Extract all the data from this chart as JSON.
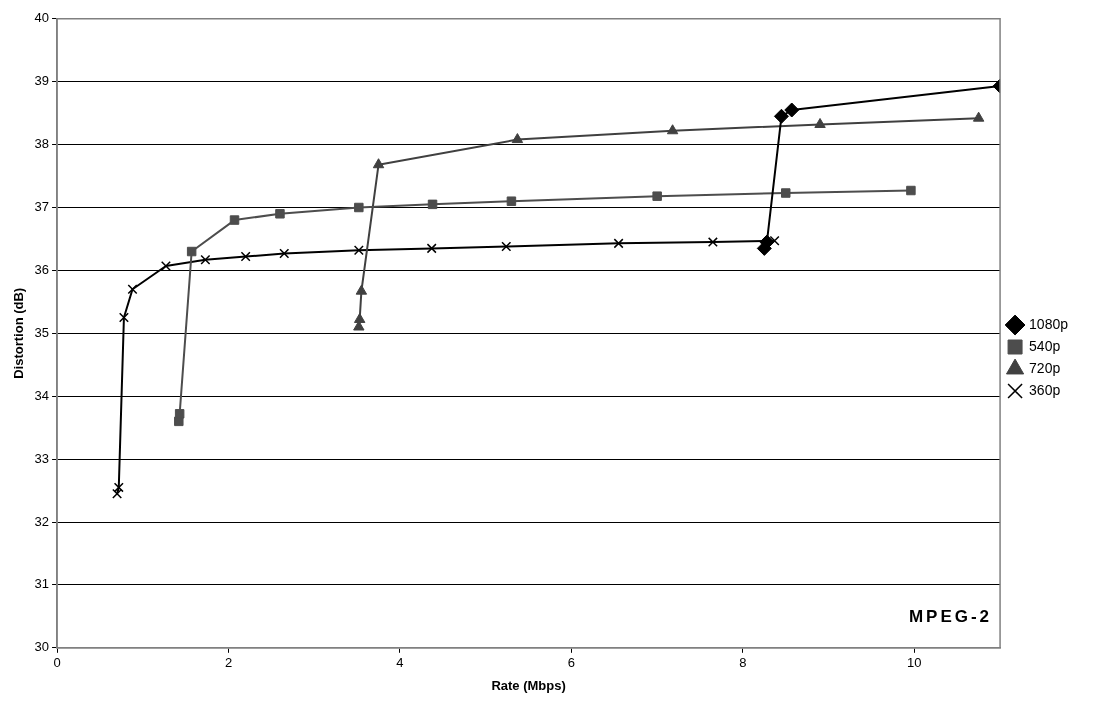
{
  "chart_data": {
    "type": "line",
    "xlabel": "Rate (Mbps)",
    "ylabel": "Distortion (dB)",
    "xlim": [
      0,
      11
    ],
    "xticks": [
      0,
      2,
      4,
      6,
      8,
      10
    ],
    "ylim": [
      30,
      40
    ],
    "yticks": [
      30,
      31,
      32,
      33,
      34,
      35,
      36,
      37,
      38,
      39,
      40
    ],
    "grid": "y",
    "legend": "right",
    "annotations": [
      "MPEG-2"
    ],
    "series": [
      {
        "name": "1080p",
        "color": "#000000",
        "marker": "diamond",
        "x": [
          8.25,
          8.28,
          8.45,
          8.57,
          11
        ],
        "values": [
          36.35,
          36.45,
          38.45,
          38.55,
          38.93
        ]
      },
      {
        "name": "540p",
        "color": "#4d4d4d",
        "marker": "square",
        "x": [
          1.42,
          1.43,
          1.57,
          2.07,
          2.6,
          3.52,
          4.38,
          5.3,
          7.0,
          8.5,
          9.96
        ],
        "values": [
          33.6,
          33.72,
          36.3,
          36.8,
          36.9,
          37.0,
          37.05,
          37.1,
          37.18,
          37.23,
          37.27
        ]
      },
      {
        "name": "720p",
        "color": "#404040",
        "marker": "triangle",
        "x": [
          3.52,
          3.53,
          3.55,
          3.75,
          5.37,
          7.18,
          8.9,
          10.75
        ],
        "values": [
          35.1,
          35.22,
          35.67,
          37.68,
          38.08,
          38.22,
          38.32,
          38.42
        ]
      },
      {
        "name": "360p",
        "color": "#000000",
        "marker": "cross",
        "x": [
          0.7,
          0.72,
          0.78,
          0.88,
          1.27,
          1.73,
          2.2,
          2.65,
          3.52,
          4.37,
          5.24,
          6.55,
          7.65,
          8.37
        ],
        "values": [
          32.45,
          32.55,
          35.25,
          35.7,
          36.07,
          36.17,
          36.22,
          36.27,
          36.32,
          36.35,
          36.38,
          36.43,
          36.45,
          36.47
        ]
      }
    ]
  }
}
